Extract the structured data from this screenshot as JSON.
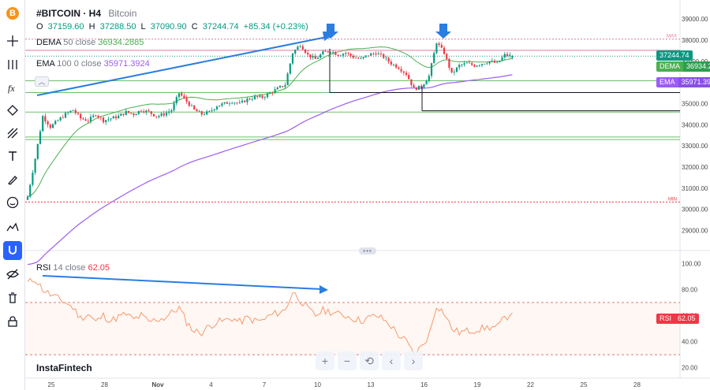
{
  "toolbar": {
    "logo": "B",
    "items": [
      "crosshair-icon",
      "horizontal-lines-icon",
      "fx-icon",
      "nodes-icon",
      "trend-tools-icon",
      "text-icon",
      "brush-icon",
      "emoji-icon",
      "measure-icon",
      "magnet-icon",
      "eye-off-icon",
      "delete-icon",
      "lock-icon"
    ]
  },
  "legend": {
    "symbol": "#BITCOIN · H4",
    "description": "Bitcoin",
    "ohlc": {
      "o_label": "O",
      "o": "37159.60",
      "h_label": "H",
      "h": "37288.50",
      "l_label": "L",
      "l": "37090.90",
      "c_label": "C",
      "c": "37244.74",
      "change": "+85.34 (+0.23%)"
    },
    "dema": {
      "name": "DEMA",
      "params": "50 close",
      "value": "36934.2885"
    },
    "ema": {
      "name": "EMA",
      "params": "100 0 close",
      "value": "35971.3924"
    },
    "rsi": {
      "name": "RSI",
      "params": "14 close",
      "value": "62.05"
    }
  },
  "badges": {
    "price": "37244.74",
    "dema_name": "DEMA",
    "dema": "36934.29",
    "ema_name": "EMA",
    "ema": "35971.39",
    "rsi_name": "RSI",
    "rsi": "62.05"
  },
  "labels": {
    "max": "MAX",
    "min": "MIN"
  },
  "watermark": "InstaFintech",
  "nav": {
    "zoom_in": "+",
    "zoom_out": "−",
    "reset": "⟲",
    "prev": "‹",
    "next": "›"
  },
  "colors": {
    "up": "#089981",
    "down": "#f23645",
    "dema": "#4caf50",
    "ema": "#9c5cf5",
    "rsi": "#f59a6b",
    "arrow": "#2a7de1",
    "resistance": "#e57ba0",
    "support": "#6cbf6c"
  },
  "chart_data": [
    {
      "type": "candlestick",
      "title": "#BITCOIN · H4",
      "y_ticks": [
        "39000.00",
        "38000.00",
        "37000.00",
        "36000.00",
        "35000.00",
        "34000.00",
        "33000.00",
        "32000.00",
        "31000.00",
        "30000.00",
        "29000.00"
      ],
      "x_ticks": [
        "25",
        "28",
        "Nov",
        "4",
        "7",
        "10",
        "13",
        "16",
        "19",
        "22",
        "25",
        "28"
      ],
      "ylim": [
        28500,
        39600
      ],
      "ohlc_samples": {
        "last": {
          "o": 37159.6,
          "h": 37288.5,
          "l": 37090.9,
          "c": 37244.74
        }
      },
      "close_path": [
        [
          0,
          30600
        ],
        [
          3,
          32400
        ],
        [
          6,
          34400
        ],
        [
          9,
          33900
        ],
        [
          12,
          34200
        ],
        [
          15,
          34500
        ],
        [
          18,
          34700
        ],
        [
          21,
          34300
        ],
        [
          24,
          34200
        ],
        [
          27,
          34500
        ],
        [
          30,
          34200
        ],
        [
          33,
          34300
        ],
        [
          36,
          34400
        ],
        [
          39,
          34600
        ],
        [
          42,
          34500
        ],
        [
          45,
          34700
        ],
        [
          48,
          34600
        ],
        [
          51,
          34400
        ],
        [
          54,
          34500
        ],
        [
          57,
          34700
        ],
        [
          60,
          35500
        ],
        [
          63,
          35100
        ],
        [
          66,
          34700
        ],
        [
          69,
          34500
        ],
        [
          72,
          34600
        ],
        [
          75,
          34900
        ],
        [
          78,
          35000
        ],
        [
          81,
          35100
        ],
        [
          84,
          35000
        ],
        [
          87,
          35200
        ],
        [
          90,
          35300
        ],
        [
          93,
          35300
        ],
        [
          96,
          35500
        ],
        [
          99,
          35700
        ],
        [
          102,
          35900
        ],
        [
          105,
          37400
        ],
        [
          108,
          37800
        ],
        [
          111,
          37300
        ],
        [
          114,
          37100
        ],
        [
          117,
          37400
        ],
        [
          120,
          37500
        ],
        [
          123,
          37300
        ],
        [
          126,
          37400
        ],
        [
          129,
          37200
        ],
        [
          132,
          37100
        ],
        [
          135,
          37300
        ],
        [
          138,
          37400
        ],
        [
          141,
          37200
        ],
        [
          144,
          36900
        ],
        [
          147,
          36700
        ],
        [
          150,
          36400
        ],
        [
          153,
          35700
        ],
        [
          156,
          35800
        ],
        [
          159,
          36300
        ],
        [
          162,
          37900
        ],
        [
          165,
          37400
        ],
        [
          168,
          36400
        ],
        [
          171,
          36800
        ],
        [
          174,
          36900
        ],
        [
          177,
          36800
        ],
        [
          180,
          36900
        ],
        [
          183,
          37000
        ],
        [
          186,
          36900
        ],
        [
          189,
          37300
        ],
        [
          192,
          37244.74
        ]
      ],
      "series": [
        {
          "name": "DEMA 50 close",
          "last": 36934.2885
        },
        {
          "name": "EMA 100 0 close",
          "last": 35971.3924
        }
      ],
      "levels": [
        {
          "label": "MAX",
          "value": 38050
        },
        {
          "label": "resistance",
          "value": 37520
        },
        {
          "label": "last",
          "value": 37244.74
        },
        {
          "label": "support",
          "value": 36080
        },
        {
          "label": "support",
          "value": 35520
        },
        {
          "label": "support",
          "value": 34600
        },
        {
          "label": "support",
          "value": 33420
        },
        {
          "label": "support",
          "value": 33300
        },
        {
          "label": "MIN",
          "value": 30350
        }
      ]
    },
    {
      "type": "line",
      "title": "RSI 14 close",
      "y_ticks": [
        "100.00",
        "80.00",
        "60.00",
        "40.00",
        "20.00"
      ],
      "ylim": [
        15,
        105
      ],
      "levels": [
        70,
        30
      ],
      "last": 62.05,
      "values": [
        [
          0,
          85
        ],
        [
          3,
          88
        ],
        [
          6,
          80
        ],
        [
          9,
          76
        ],
        [
          12,
          73
        ],
        [
          15,
          70
        ],
        [
          18,
          66
        ],
        [
          21,
          58
        ],
        [
          24,
          61
        ],
        [
          27,
          55
        ],
        [
          30,
          60
        ],
        [
          33,
          56
        ],
        [
          36,
          59
        ],
        [
          39,
          61
        ],
        [
          42,
          57
        ],
        [
          45,
          60
        ],
        [
          48,
          55
        ],
        [
          51,
          57
        ],
        [
          54,
          58
        ],
        [
          57,
          62
        ],
        [
          60,
          66
        ],
        [
          63,
          55
        ],
        [
          66,
          48
        ],
        [
          69,
          47
        ],
        [
          72,
          52
        ],
        [
          75,
          55
        ],
        [
          78,
          56
        ],
        [
          81,
          58
        ],
        [
          84,
          55
        ],
        [
          87,
          58
        ],
        [
          90,
          56
        ],
        [
          93,
          56
        ],
        [
          96,
          60
        ],
        [
          99,
          62
        ],
        [
          102,
          64
        ],
        [
          105,
          78
        ],
        [
          108,
          72
        ],
        [
          111,
          65
        ],
        [
          114,
          60
        ],
        [
          117,
          64
        ],
        [
          120,
          63
        ],
        [
          123,
          61
        ],
        [
          126,
          60
        ],
        [
          129,
          58
        ],
        [
          132,
          56
        ],
        [
          135,
          58
        ],
        [
          138,
          60
        ],
        [
          141,
          57
        ],
        [
          144,
          52
        ],
        [
          147,
          45
        ],
        [
          150,
          40
        ],
        [
          153,
          30
        ],
        [
          156,
          36
        ],
        [
          159,
          45
        ],
        [
          162,
          68
        ],
        [
          165,
          62
        ],
        [
          168,
          50
        ],
        [
          171,
          47
        ],
        [
          174,
          48
        ],
        [
          177,
          49
        ],
        [
          180,
          50
        ],
        [
          183,
          51
        ],
        [
          186,
          51
        ],
        [
          189,
          58
        ],
        [
          192,
          62.05
        ]
      ]
    }
  ]
}
